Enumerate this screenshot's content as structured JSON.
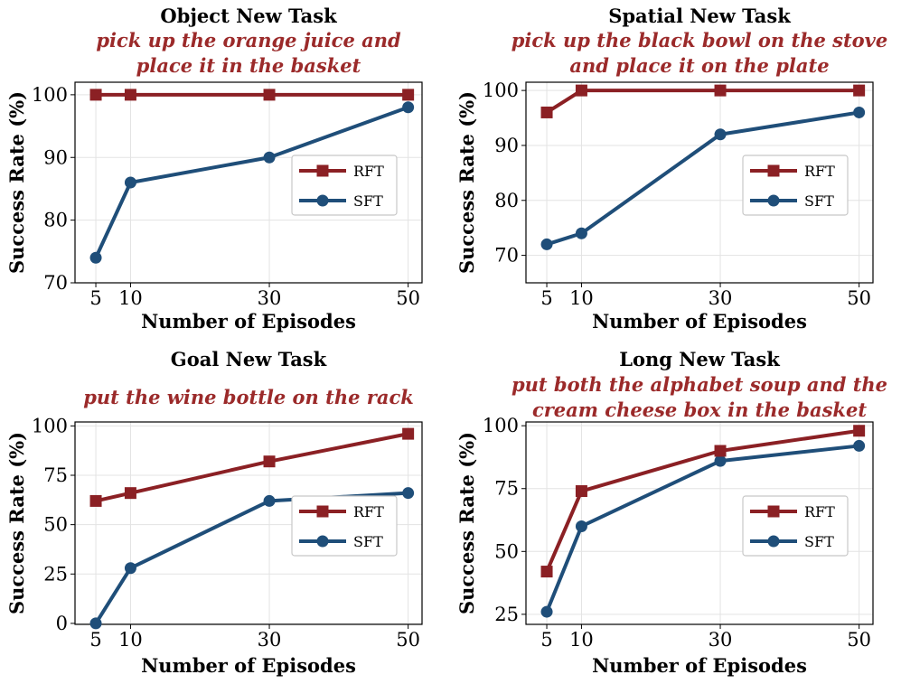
{
  "colors": {
    "rft": "#8B2024",
    "sft": "#1F4E79",
    "subtitle": "#9B2A2A",
    "grid": "#e3e3e3"
  },
  "chart_data": [
    {
      "type": "line",
      "title": "Object New Task",
      "subtitle": [
        "pick up the orange juice and",
        "place it in the basket"
      ],
      "xlabel": "Number of Episodes",
      "ylabel": "Success Rate (%)",
      "x": [
        5,
        10,
        30,
        50
      ],
      "xlim": [
        2,
        52
      ],
      "ylim": [
        70,
        102
      ],
      "yticks": [
        70,
        80,
        90,
        100
      ],
      "xticks": [
        5,
        10,
        30,
        50
      ],
      "legend": "center-right",
      "series": [
        {
          "name": "RFT",
          "key": "rft",
          "marker": "square",
          "values": [
            100,
            100,
            100,
            100
          ]
        },
        {
          "name": "SFT",
          "key": "sft",
          "marker": "circle",
          "values": [
            74,
            86,
            90,
            98
          ]
        }
      ]
    },
    {
      "type": "line",
      "title": "Spatial New Task",
      "subtitle": [
        "pick up the black bowl on the stove",
        "and place it on the plate"
      ],
      "xlabel": "Number of Episodes",
      "ylabel": "Success Rate (%)",
      "x": [
        5,
        10,
        30,
        50
      ],
      "xlim": [
        2,
        52
      ],
      "ylim": [
        65,
        101.5
      ],
      "yticks": [
        70,
        80,
        90,
        100
      ],
      "xticks": [
        5,
        10,
        30,
        50
      ],
      "legend": "center-right",
      "series": [
        {
          "name": "RFT",
          "key": "rft",
          "marker": "square",
          "values": [
            96,
            100,
            100,
            100
          ]
        },
        {
          "name": "SFT",
          "key": "sft",
          "marker": "circle",
          "values": [
            72,
            74,
            92,
            96
          ]
        }
      ]
    },
    {
      "type": "line",
      "title": "Goal New Task",
      "subtitle": [
        "put the wine bottle on the rack"
      ],
      "xlabel": "Number of Episodes",
      "ylabel": "Success Rate (%)",
      "x": [
        5,
        10,
        30,
        50
      ],
      "xlim": [
        2,
        52
      ],
      "ylim": [
        -0.5,
        102
      ],
      "yticks": [
        0,
        25,
        50,
        75,
        100
      ],
      "xticks": [
        5,
        10,
        30,
        50
      ],
      "legend": "center-right",
      "series": [
        {
          "name": "RFT",
          "key": "rft",
          "marker": "square",
          "values": [
            62,
            66,
            82,
            96
          ]
        },
        {
          "name": "SFT",
          "key": "sft",
          "marker": "circle",
          "values": [
            0,
            28,
            62,
            66
          ]
        }
      ]
    },
    {
      "type": "line",
      "title": "Long New Task",
      "subtitle": [
        "put both the alphabet soup and the",
        "cream cheese box in the basket"
      ],
      "xlabel": "Number of Episodes",
      "ylabel": "Success Rate (%)",
      "x": [
        5,
        10,
        30,
        50
      ],
      "xlim": [
        2,
        52
      ],
      "ylim": [
        21,
        101.5
      ],
      "yticks": [
        25,
        50,
        75,
        100
      ],
      "xticks": [
        5,
        10,
        30,
        50
      ],
      "legend": "center-right",
      "series": [
        {
          "name": "RFT",
          "key": "rft",
          "marker": "square",
          "values": [
            42,
            74,
            90,
            98
          ]
        },
        {
          "name": "SFT",
          "key": "sft",
          "marker": "circle",
          "values": [
            26,
            60,
            86,
            92
          ]
        }
      ]
    }
  ]
}
